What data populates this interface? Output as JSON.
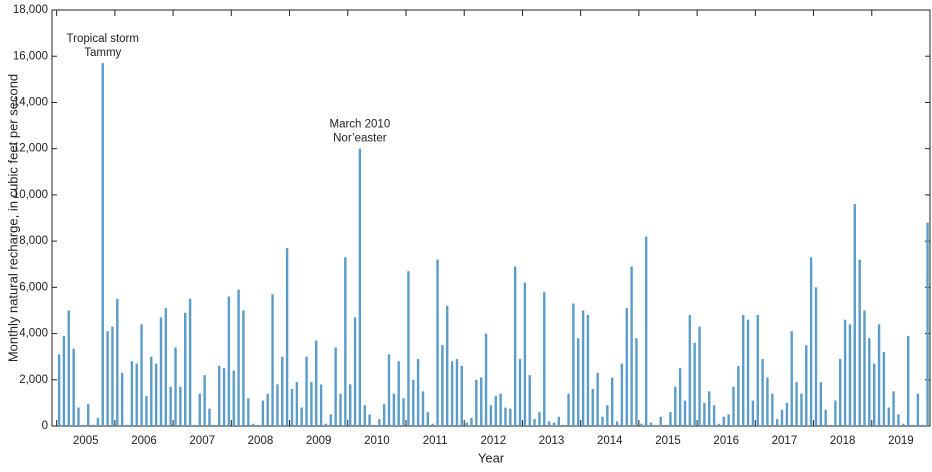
{
  "chart_data": {
    "type": "bar",
    "ylabel": "Monthly natural recharge, in cubic feet per second",
    "xlabel": "Year",
    "annotations": [
      {
        "x": 2005.792,
        "lines": [
          "Tropical storm",
          "Tammy"
        ]
      },
      {
        "x": 2010.208,
        "lines": [
          "March 2010",
          "Nor’easter"
        ]
      }
    ],
    "color": "#5b9dc8",
    "xlim": [
      2004.92,
      2020
    ],
    "ylim": [
      0,
      18000
    ],
    "yticks": [
      0,
      {
        "value": 2000,
        "label": "2,000"
      },
      {
        "value": 4000,
        "label": "4,000"
      },
      {
        "value": 6000,
        "label": "6,000"
      },
      {
        "value": 8000,
        "label": "8,000"
      },
      {
        "value": 10000,
        "label": "10,000"
      },
      {
        "value": 12000,
        "label": "12,000"
      },
      {
        "value": 14000,
        "label": "14,000"
      },
      {
        "value": 16000,
        "label": "16,000"
      },
      {
        "value": 18000,
        "label": "18,000"
      }
    ],
    "xticks": [
      2005,
      2006,
      2007,
      2008,
      2009,
      2010,
      2011,
      2012,
      2013,
      2014,
      2015,
      2016,
      2017,
      2018,
      2019
    ],
    "x": [
      2005.042,
      2005.125,
      2005.208,
      2005.292,
      2005.375,
      2005.458,
      2005.542,
      2005.625,
      2005.708,
      2005.792,
      2005.875,
      2005.958,
      2006.042,
      2006.125,
      2006.208,
      2006.292,
      2006.375,
      2006.458,
      2006.542,
      2006.625,
      2006.708,
      2006.792,
      2006.875,
      2006.958,
      2007.042,
      2007.125,
      2007.208,
      2007.292,
      2007.375,
      2007.458,
      2007.542,
      2007.625,
      2007.708,
      2007.792,
      2007.875,
      2007.958,
      2008.042,
      2008.125,
      2008.208,
      2008.292,
      2008.375,
      2008.458,
      2008.542,
      2008.625,
      2008.708,
      2008.792,
      2008.875,
      2008.958,
      2009.042,
      2009.125,
      2009.208,
      2009.292,
      2009.375,
      2009.458,
      2009.542,
      2009.625,
      2009.708,
      2009.792,
      2009.875,
      2009.958,
      2010.042,
      2010.125,
      2010.208,
      2010.292,
      2010.375,
      2010.458,
      2010.542,
      2010.625,
      2010.708,
      2010.792,
      2010.875,
      2010.958,
      2011.042,
      2011.125,
      2011.208,
      2011.292,
      2011.375,
      2011.458,
      2011.542,
      2011.625,
      2011.708,
      2011.792,
      2011.875,
      2011.958,
      2012.042,
      2012.125,
      2012.208,
      2012.292,
      2012.375,
      2012.458,
      2012.542,
      2012.625,
      2012.708,
      2012.792,
      2012.875,
      2012.958,
      2013.042,
      2013.125,
      2013.208,
      2013.292,
      2013.375,
      2013.458,
      2013.542,
      2013.625,
      2013.708,
      2013.792,
      2013.875,
      2013.958,
      2014.042,
      2014.125,
      2014.208,
      2014.292,
      2014.375,
      2014.458,
      2014.542,
      2014.625,
      2014.708,
      2014.792,
      2014.875,
      2014.958,
      2015.042,
      2015.125,
      2015.208,
      2015.292,
      2015.375,
      2015.458,
      2015.542,
      2015.625,
      2015.708,
      2015.792,
      2015.875,
      2015.958,
      2016.042,
      2016.125,
      2016.208,
      2016.292,
      2016.375,
      2016.458,
      2016.542,
      2016.625,
      2016.708,
      2016.792,
      2016.875,
      2016.958,
      2017.042,
      2017.125,
      2017.208,
      2017.292,
      2017.375,
      2017.458,
      2017.542,
      2017.625,
      2017.708,
      2017.792,
      2017.875,
      2017.958,
      2018.042,
      2018.125,
      2018.208,
      2018.292,
      2018.375,
      2018.458,
      2018.542,
      2018.625,
      2018.708,
      2018.792,
      2018.875,
      2018.958,
      2019.042,
      2019.125,
      2019.208,
      2019.292,
      2019.375,
      2019.458,
      2019.542,
      2019.625,
      2019.708,
      2019.792,
      2019.875,
      2019.958
    ],
    "values": [
      3100,
      3900,
      5000,
      3350,
      800,
      50,
      950,
      50,
      350,
      15700,
      4100,
      4300,
      5500,
      2300,
      50,
      2800,
      2700,
      4400,
      1300,
      3000,
      2700,
      4700,
      5100,
      1700,
      3400,
      1700,
      4900,
      5500,
      50,
      1400,
      2200,
      750,
      50,
      2600,
      2500,
      5600,
      2400,
      5900,
      5000,
      1200,
      100,
      50,
      1100,
      1400,
      5700,
      1800,
      3000,
      7700,
      1600,
      1900,
      800,
      3000,
      1900,
      3700,
      1800,
      100,
      500,
      3400,
      1400,
      7300,
      1800,
      4700,
      12000,
      900,
      500,
      50,
      300,
      950,
      3100,
      1400,
      2800,
      1200,
      6700,
      2000,
      2900,
      1500,
      600,
      100,
      7200,
      3500,
      5200,
      2800,
      2900,
      2600,
      150,
      350,
      2000,
      2100,
      4000,
      900,
      1300,
      1400,
      800,
      750,
      6900,
      2900,
      6200,
      2200,
      300,
      600,
      5800,
      200,
      150,
      400,
      50,
      1400,
      5300,
      3800,
      5000,
      4800,
      1600,
      2300,
      400,
      900,
      2100,
      200,
      2700,
      5100,
      6900,
      3800,
      100,
      8200,
      150,
      50,
      400,
      50,
      600,
      1700,
      2500,
      1100,
      4800,
      3600,
      4300,
      1000,
      1500,
      900,
      100,
      400,
      500,
      1700,
      2600,
      4800,
      4600,
      1100,
      4800,
      2900,
      2100,
      1400,
      300,
      700,
      1000,
      4100,
      1900,
      1400,
      3500,
      7300,
      6000,
      1900,
      700,
      50,
      1100,
      2900,
      4600,
      4400,
      9600,
      7200,
      5000,
      3800,
      2700,
      4400,
      3200,
      800,
      1500,
      500,
      100,
      3900,
      50,
      1400,
      50,
      8800
    ]
  }
}
